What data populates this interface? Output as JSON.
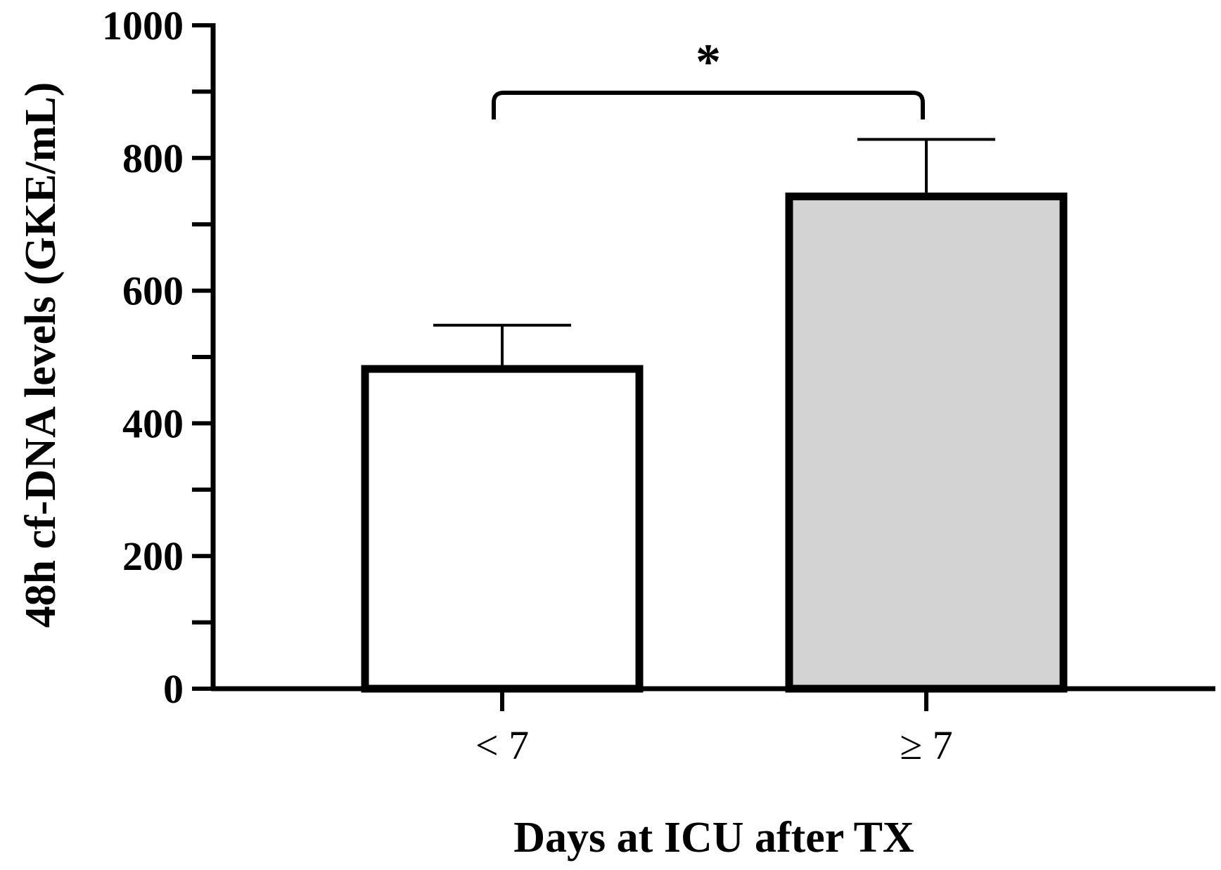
{
  "chart_data": {
    "type": "bar",
    "categories": [
      "< 7",
      "≥ 7"
    ],
    "values": [
      482,
      742
    ],
    "error_upper": [
      548,
      828
    ],
    "bar_colors": [
      "#ffffff",
      "#d3d3d3"
    ],
    "outline_color": "#000000",
    "xlabel": "Days at ICU after TX",
    "ylabel": "48h cf-DNA levels (GKE/mL)",
    "ylim": [
      0,
      1000
    ],
    "yticks": [
      0,
      200,
      400,
      600,
      800,
      1000
    ],
    "y_minor_step": 100,
    "grid": false,
    "legend": "none",
    "significance": {
      "from": 0,
      "to": 1,
      "label": "*"
    }
  }
}
